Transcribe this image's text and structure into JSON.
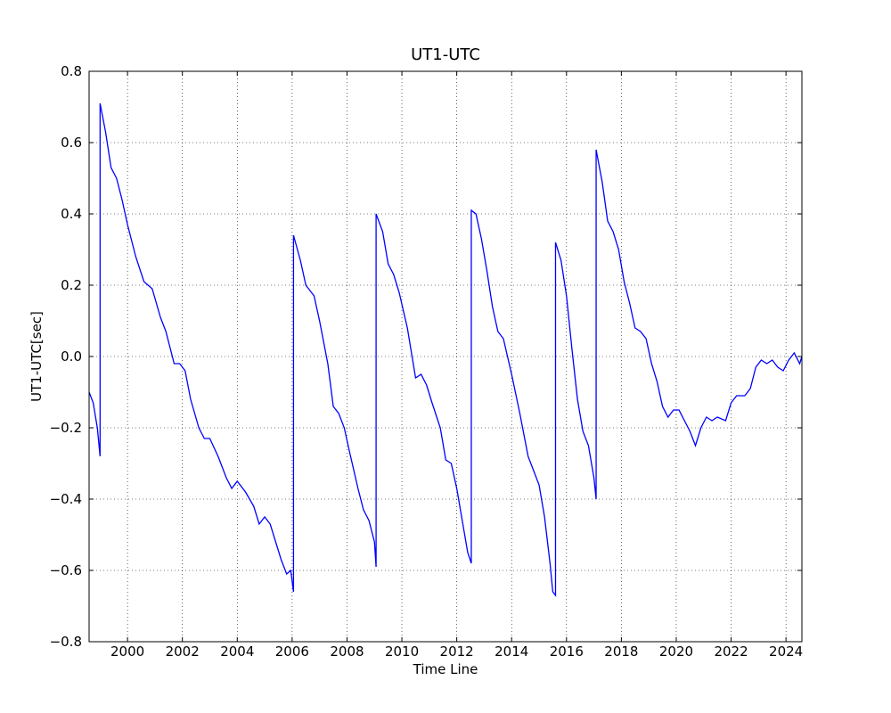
{
  "chart_data": {
    "type": "line",
    "title": "UT1-UTC",
    "xlabel": "Time Line",
    "ylabel": "UT1-UTC[sec]",
    "xlim": [
      1998.6,
      2024.58
    ],
    "ylim": [
      -0.8,
      0.8
    ],
    "xticks": [
      2000,
      2002,
      2004,
      2006,
      2008,
      2010,
      2012,
      2014,
      2016,
      2018,
      2020,
      2022,
      2024
    ],
    "yticks": [
      {
        "value": -0.8,
        "label": "−0.8"
      },
      {
        "value": -0.6,
        "label": "−0.6"
      },
      {
        "value": -0.4,
        "label": "−0.4"
      },
      {
        "value": -0.2,
        "label": "−0.2"
      },
      {
        "value": 0,
        "label": "0.0"
      },
      0.2,
      0.4,
      0.6,
      0.8
    ],
    "grid": true,
    "series": [
      {
        "color": "#0000ff",
        "x": [
          1998.6,
          1998.75,
          1998.9,
          1999.0,
          1999.0,
          1999.2,
          1999.4,
          1999.6,
          1999.8,
          2000.0,
          2000.3,
          2000.6,
          2000.9,
          2001.2,
          2001.4,
          2001.7,
          2001.9,
          2002.1,
          2002.3,
          2002.6,
          2002.8,
          2003.0,
          2003.3,
          2003.6,
          2003.8,
          2004.0,
          2004.3,
          2004.6,
          2004.8,
          2005.0,
          2005.2,
          2005.4,
          2005.6,
          2005.8,
          2005.95,
          2006.05,
          2006.05,
          2006.3,
          2006.5,
          2006.8,
          2007.0,
          2007.3,
          2007.5,
          2007.7,
          2007.9,
          2008.1,
          2008.4,
          2008.6,
          2008.8,
          2009.0,
          2009.06,
          2009.06,
          2009.3,
          2009.5,
          2009.7,
          2009.9,
          2010.2,
          2010.5,
          2010.7,
          2010.9,
          2011.1,
          2011.4,
          2011.6,
          2011.8,
          2012.0,
          2012.2,
          2012.4,
          2012.53,
          2012.53,
          2012.7,
          2012.9,
          2013.1,
          2013.3,
          2013.5,
          2013.7,
          2014.0,
          2014.3,
          2014.6,
          2014.8,
          2015.0,
          2015.2,
          2015.4,
          2015.5,
          2015.6,
          2015.6,
          2015.8,
          2016.0,
          2016.2,
          2016.4,
          2016.6,
          2016.8,
          2017.0,
          2017.08,
          2017.08,
          2017.3,
          2017.5,
          2017.7,
          2017.9,
          2018.1,
          2018.3,
          2018.5,
          2018.7,
          2018.9,
          2019.1,
          2019.3,
          2019.5,
          2019.7,
          2019.9,
          2020.1,
          2020.3,
          2020.5,
          2020.7,
          2020.9,
          2021.1,
          2021.3,
          2021.5,
          2021.8,
          2022.0,
          2022.2,
          2022.5,
          2022.7,
          2022.9,
          2023.1,
          2023.3,
          2023.5,
          2023.7,
          2023.9,
          2024.1,
          2024.3,
          2024.5,
          2024.58
        ],
        "values": [
          -0.1,
          -0.13,
          -0.2,
          -0.28,
          0.71,
          0.63,
          0.53,
          0.5,
          0.44,
          0.37,
          0.28,
          0.21,
          0.19,
          0.11,
          0.07,
          -0.02,
          -0.02,
          -0.04,
          -0.12,
          -0.2,
          -0.23,
          -0.23,
          -0.28,
          -0.34,
          -0.37,
          -0.35,
          -0.38,
          -0.42,
          -0.47,
          -0.45,
          -0.47,
          -0.52,
          -0.57,
          -0.61,
          -0.6,
          -0.66,
          0.34,
          0.27,
          0.2,
          0.17,
          0.1,
          -0.02,
          -0.14,
          -0.16,
          -0.2,
          -0.27,
          -0.37,
          -0.43,
          -0.46,
          -0.52,
          -0.59,
          0.4,
          0.35,
          0.26,
          0.23,
          0.18,
          0.08,
          -0.06,
          -0.05,
          -0.08,
          -0.13,
          -0.2,
          -0.29,
          -0.3,
          -0.37,
          -0.46,
          -0.55,
          -0.58,
          0.41,
          0.4,
          0.33,
          0.24,
          0.14,
          0.07,
          0.05,
          -0.05,
          -0.16,
          -0.28,
          -0.32,
          -0.36,
          -0.45,
          -0.58,
          -0.66,
          -0.67,
          0.32,
          0.27,
          0.17,
          0.02,
          -0.12,
          -0.21,
          -0.25,
          -0.34,
          -0.4,
          0.58,
          0.49,
          0.38,
          0.35,
          0.3,
          0.21,
          0.15,
          0.08,
          0.07,
          0.05,
          -0.02,
          -0.07,
          -0.14,
          -0.17,
          -0.15,
          -0.15,
          -0.18,
          -0.21,
          -0.25,
          -0.2,
          -0.17,
          -0.18,
          -0.17,
          -0.18,
          -0.13,
          -0.11,
          -0.11,
          -0.09,
          -0.03,
          -0.01,
          -0.02,
          -0.01,
          -0.03,
          -0.04,
          -0.01,
          0.01,
          -0.02,
          0.0
        ]
      }
    ]
  }
}
